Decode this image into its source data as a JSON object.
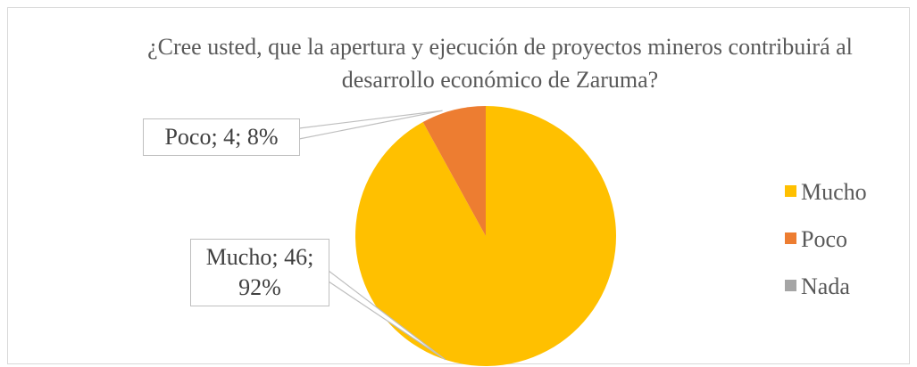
{
  "chart_data": {
    "type": "pie",
    "title": "¿Cree usted, que la apertura y ejecución de proyectos mineros contribuirá al desarrollo económico de Zaruma?",
    "categories": [
      "Mucho",
      "Poco",
      "Nada"
    ],
    "values": [
      46,
      4,
      0
    ],
    "value_labels": [
      "Mucho; 46; 92%",
      "Poco; 4; 8%",
      null
    ],
    "colors": [
      "#ffc000",
      "#ed7d31",
      "#a5a5a5"
    ],
    "legend": "right"
  }
}
